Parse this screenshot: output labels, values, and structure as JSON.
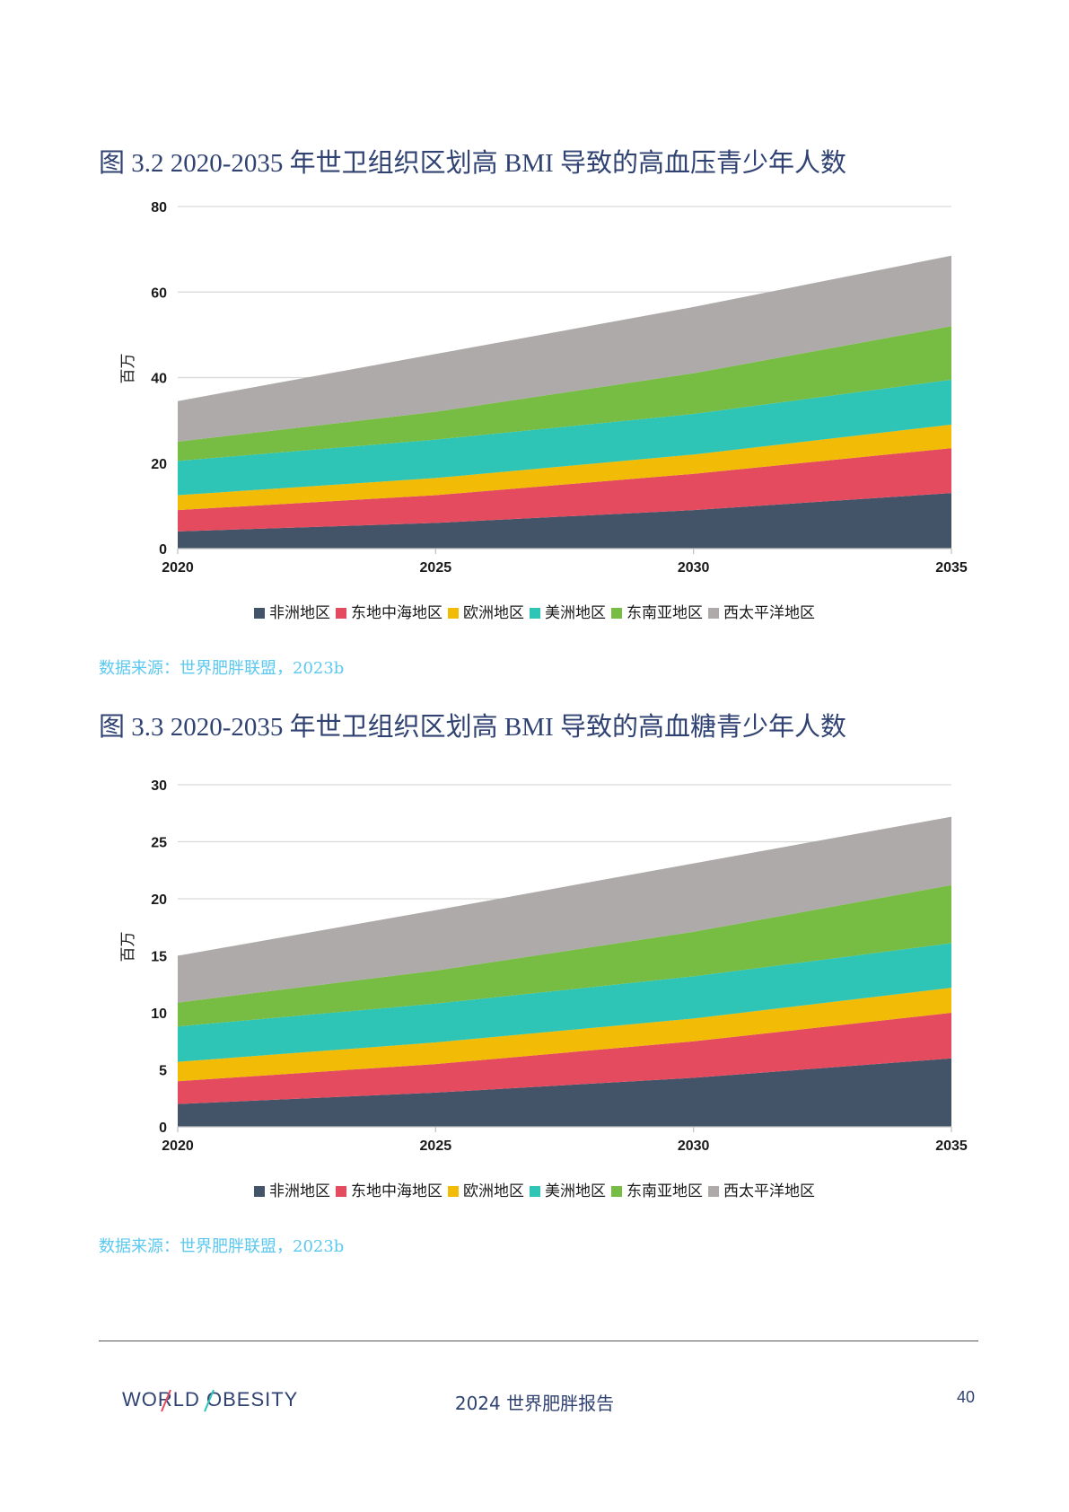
{
  "figures": [
    {
      "title": "图 3.2 2020-2035 年世卫组织区划高 BMI 导致的高血压青少年人数",
      "source": "数据来源：世界肥胖联盟，2023b"
    },
    {
      "title": "图 3.3 2020-2035 年世卫组织区划高 BMI 导致的高血糖青少年人数",
      "source": "数据来源：世界肥胖联盟，2023b"
    }
  ],
  "chart_data": [
    {
      "type": "area",
      "stacked": true,
      "title": "",
      "xlabel": "",
      "ylabel": "百万",
      "x": [
        2020,
        2025,
        2030,
        2035
      ],
      "xticks": [
        "2020",
        "2025",
        "2030",
        "2035"
      ],
      "ylim": [
        0,
        80
      ],
      "yticks": [
        "0",
        "20",
        "40",
        "60",
        "80"
      ],
      "grid": true,
      "legend_position": "bottom",
      "series": [
        {
          "name": "非洲地区",
          "color": "#435469",
          "values": [
            4.0,
            6.0,
            9.0,
            13.0
          ]
        },
        {
          "name": "东地中海地区",
          "color": "#e44b5e",
          "values": [
            5.0,
            6.5,
            8.5,
            10.5
          ]
        },
        {
          "name": "欧洲地区",
          "color": "#f2bb05",
          "values": [
            3.5,
            4.0,
            4.5,
            5.5
          ]
        },
        {
          "name": "美洲地区",
          "color": "#2ec4b6",
          "values": [
            8.0,
            9.0,
            9.5,
            10.5
          ]
        },
        {
          "name": "东南亚地区",
          "color": "#77bc43",
          "values": [
            4.5,
            6.5,
            9.5,
            12.5
          ]
        },
        {
          "name": "西太平洋地区",
          "color": "#aeaaaa",
          "values": [
            9.5,
            13.5,
            15.5,
            16.5
          ]
        }
      ]
    },
    {
      "type": "area",
      "stacked": true,
      "title": "",
      "xlabel": "",
      "ylabel": "百万",
      "x": [
        2020,
        2025,
        2030,
        2035
      ],
      "xticks": [
        "2020",
        "2025",
        "2030",
        "2035"
      ],
      "ylim": [
        0,
        30
      ],
      "yticks": [
        "0",
        "5",
        "10",
        "15",
        "20",
        "25",
        "30"
      ],
      "grid": true,
      "legend_position": "bottom",
      "series": [
        {
          "name": "非洲地区",
          "color": "#435469",
          "values": [
            2.0,
            3.0,
            4.3,
            6.0
          ]
        },
        {
          "name": "东地中海地区",
          "color": "#e44b5e",
          "values": [
            2.0,
            2.5,
            3.2,
            4.0
          ]
        },
        {
          "name": "欧洲地区",
          "color": "#f2bb05",
          "values": [
            1.7,
            1.9,
            2.0,
            2.2
          ]
        },
        {
          "name": "美洲地区",
          "color": "#2ec4b6",
          "values": [
            3.1,
            3.4,
            3.7,
            3.9
          ]
        },
        {
          "name": "东南亚地区",
          "color": "#77bc43",
          "values": [
            2.1,
            2.9,
            3.9,
            5.1
          ]
        },
        {
          "name": "西太平洋地区",
          "color": "#aeaaaa",
          "values": [
            4.1,
            5.3,
            6.0,
            6.0
          ]
        }
      ]
    }
  ],
  "footer": {
    "logo_text": "WORLD OBESITY",
    "report_title": "2024 世界肥胖报告",
    "page_number": "40"
  }
}
